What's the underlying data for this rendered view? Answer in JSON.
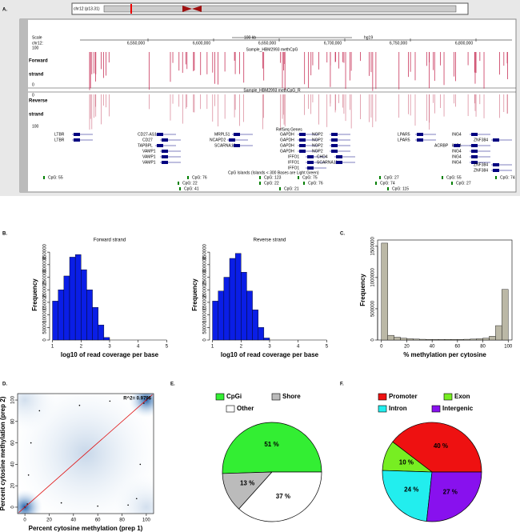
{
  "panels": [
    "A.",
    "B.",
    "C.",
    "D.",
    "E.",
    "F."
  ],
  "browser": {
    "ideogram": "chr12 (p13.31)",
    "scale": "Scale",
    "chrom": "chr12:",
    "scale_bar": "100 kb",
    "assembly": "hg19",
    "positions": [
      "6,550,000",
      "6,600,000",
      "6,650,000",
      "6,700,000",
      "6,750,000",
      "6,800,000"
    ],
    "forward_track": "Sample_HBM2993 methCpG",
    "reverse_track": "Sample_HBM2993 methCpG_R",
    "track_ticks": [
      "100",
      "0",
      "0",
      "100"
    ],
    "forward_label": [
      "Forward",
      "strand"
    ],
    "reverse_label": [
      "Reverse",
      "strand"
    ],
    "genes_track": "RefSeq Genes",
    "genes": [
      "LTBR",
      "LTBR",
      "CD27-AS1",
      "CD27",
      "TAPBPL",
      "VAMP1",
      "VAMP1",
      "VAMP1",
      "MRPL51",
      "NCAPD2",
      "SCARNA10",
      "GAPDH",
      "GAPDH",
      "GAPDH",
      "GAPDH",
      "NOP2",
      "NOP2",
      "NOP2",
      "NOP2",
      "IFFO1",
      "IFFO1",
      "IFFO1",
      "CHD4",
      "SCARNA11",
      "LPAR5",
      "LPAR5",
      "ING4",
      "ING4",
      "ING4",
      "ING4",
      "ING4",
      "ACRBP",
      "ZNF384",
      "ZNF384",
      "ZNF384"
    ],
    "cpg_track": "CpG Islands (Islands < 300 Bases are Light Green)",
    "cpg": [
      "CpG: 55",
      "CpG: 76",
      "CpG: 22",
      "CpG: 41",
      "CpG: 123",
      "CpG: 22",
      "CpG: 21",
      "CpG: 75",
      "CpG: 76",
      "CpG: 27",
      "CpG: 74",
      "CpG: 115",
      "CpG: 55",
      "CpG: 27",
      "CpG: 74"
    ]
  },
  "chart_data": [
    {
      "type": "histogram",
      "title": "Forward strand",
      "x_label": "log10 of read coverage per base",
      "y_label": "Frequency",
      "color": "#0a1ee6",
      "bins": [
        1,
        1.2,
        1.4,
        1.6,
        1.8,
        2,
        2.2,
        2.4,
        2.6,
        2.8,
        3
      ],
      "values": [
        155000,
        200000,
        255000,
        330000,
        340000,
        280000,
        200000,
        130000,
        60000,
        10000
      ],
      "xlim": [
        0.9,
        5.1
      ],
      "xticks": [
        1,
        2,
        3,
        4,
        5
      ],
      "ylim": [
        0,
        360000
      ],
      "yticks": [
        0,
        50000,
        100000,
        150000,
        200000,
        250000,
        300000,
        350000
      ]
    },
    {
      "type": "histogram",
      "title": "Reverse strand",
      "x_label": "log10 of read coverage per base",
      "y_label": "Frequency",
      "color": "#0a1ee6",
      "bins": [
        1,
        1.2,
        1.4,
        1.6,
        1.8,
        2,
        2.2,
        2.4,
        2.6,
        2.8,
        3
      ],
      "values": [
        155000,
        195000,
        250000,
        325000,
        345000,
        270000,
        195000,
        120000,
        50000,
        8000
      ],
      "xlim": [
        0.9,
        5.1
      ],
      "xticks": [
        1,
        2,
        3,
        4,
        5
      ],
      "ylim": [
        0,
        360000
      ],
      "yticks": [
        0,
        50000,
        100000,
        150000,
        200000,
        250000,
        300000,
        350000
      ]
    },
    {
      "type": "histogram",
      "x_label": "% methylation per cytosine",
      "y_label": "Frequency",
      "color": "#bbb8a6",
      "bins": [
        0,
        5,
        10,
        15,
        20,
        25,
        30,
        35,
        40,
        45,
        50,
        55,
        60,
        65,
        70,
        75,
        80,
        85,
        90,
        95,
        100
      ],
      "values": [
        1550000,
        75000,
        45000,
        30000,
        20000,
        15000,
        12000,
        10000,
        10000,
        10000,
        10000,
        10000,
        10000,
        12000,
        15000,
        20000,
        30000,
        60000,
        230000,
        810000
      ],
      "xlim": [
        -3,
        103
      ],
      "xticks": [
        0,
        20,
        40,
        60,
        80,
        100
      ],
      "ylim": [
        0,
        1600000
      ],
      "yticks": [
        0,
        500000,
        1000000,
        1500000
      ]
    },
    {
      "type": "scatter",
      "x_label": "Percent cytosine methylation (prep 1)",
      "y_label": "Percent cytosine methylation (prep 2)",
      "annotation": "R^2= 0.9796",
      "color": "#000",
      "x": [
        0,
        2,
        100,
        98,
        5,
        30,
        85,
        92,
        45,
        60,
        12,
        95,
        3,
        70
      ],
      "y": [
        0,
        3,
        100,
        97,
        60,
        4,
        2,
        8,
        95,
        1,
        90,
        40,
        30,
        99
      ],
      "regression_line": {
        "x": [
          -5,
          105
        ],
        "y": [
          -5,
          105
        ],
        "color": "#e01010"
      },
      "xlim": [
        -6,
        106
      ],
      "xticks": [
        0,
        20,
        40,
        60,
        80,
        100
      ],
      "ylim": [
        -6,
        106
      ],
      "yticks": [
        0,
        20,
        40,
        60,
        80,
        100
      ]
    },
    {
      "type": "pie",
      "categories": [
        "CpGi",
        "Shore",
        "Other"
      ],
      "values": [
        51,
        13,
        37
      ],
      "value_labels": [
        "51 %",
        "13 %",
        "37 %"
      ],
      "colors": [
        "#33ee33",
        "#bbbbbb",
        "#ffffff"
      ],
      "direction": "counterclockwise"
    },
    {
      "type": "pie",
      "categories": [
        "Promoter",
        "Exon",
        "Intron",
        "Intergenic"
      ],
      "values": [
        40,
        10,
        24,
        27
      ],
      "value_labels": [
        "40 %",
        "10 %",
        "24 %",
        "27 %"
      ],
      "colors": [
        "#ee1111",
        "#77ee22",
        "#22eeee",
        "#8811ee"
      ],
      "direction": "counterclockwise"
    }
  ]
}
